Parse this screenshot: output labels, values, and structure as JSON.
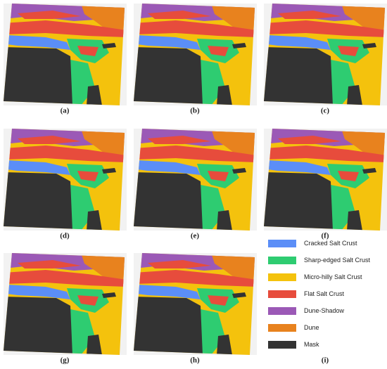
{
  "panels": [
    {
      "label": "(a)"
    },
    {
      "label": "(b)"
    },
    {
      "label": "(c)"
    },
    {
      "label": "(d)"
    },
    {
      "label": "(e)"
    },
    {
      "label": "(f)"
    },
    {
      "label": "(g)"
    },
    {
      "label": "(h)"
    },
    {
      "label": "(i)"
    }
  ],
  "legend": [
    {
      "label": "Cracked Salt Crust",
      "color": "#5b8ef7"
    },
    {
      "label": "Sharp-edged Salt Crust",
      "color": "#2ecc71"
    },
    {
      "label": "Micro-hilly Salt Crust",
      "color": "#f4c20d"
    },
    {
      "label": "Flat Salt Crust",
      "color": "#e74c3c"
    },
    {
      "label": "Dune-Shadow",
      "color": "#9b59b6"
    },
    {
      "label": "Dune",
      "color": "#e8821e"
    },
    {
      "label": "Mask",
      "color": "#333333"
    }
  ]
}
